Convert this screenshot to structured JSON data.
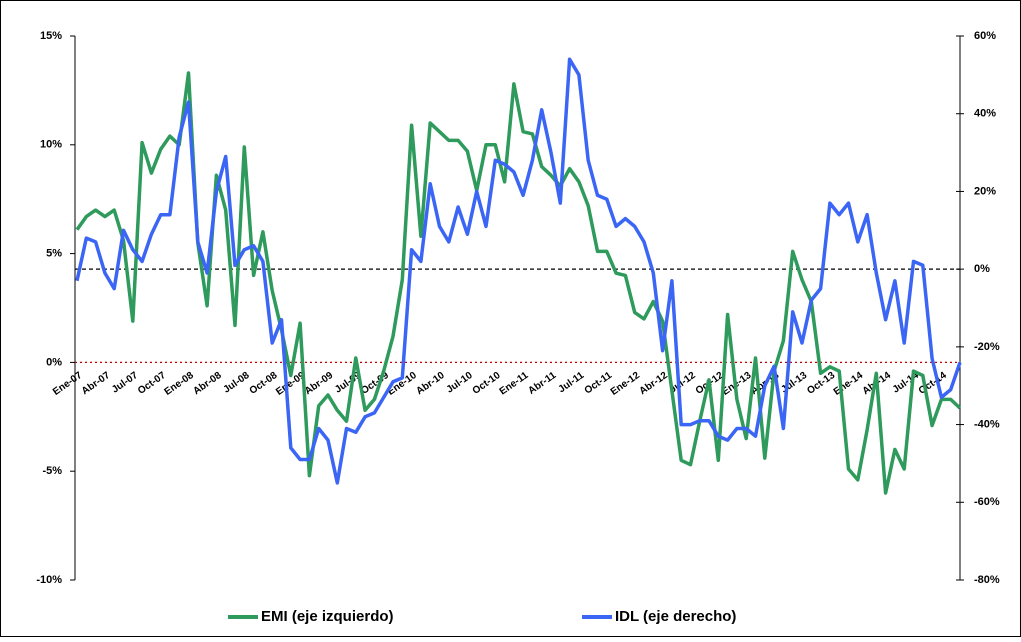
{
  "chart_data": {
    "type": "line",
    "categories": [
      "Ene-07",
      null,
      null,
      "Abr-07",
      null,
      null,
      "Jul-07",
      null,
      null,
      "Oct-07",
      null,
      null,
      "Ene-08",
      null,
      null,
      "Abr-08",
      null,
      null,
      "Jul-08",
      null,
      null,
      "Oct-08",
      null,
      null,
      "Ene-09",
      null,
      null,
      "Abr-09",
      null,
      null,
      "Jul-09",
      null,
      null,
      "Oct-09",
      null,
      null,
      "Ene-10",
      null,
      null,
      "Abr-10",
      null,
      null,
      "Jul-10",
      null,
      null,
      "Oct-10",
      null,
      null,
      "Ene-11",
      null,
      null,
      "Abr-11",
      null,
      null,
      "Jul-11",
      null,
      null,
      "Oct-11",
      null,
      null,
      "Ene-12",
      null,
      null,
      "Abr-12",
      null,
      null,
      "Jul-12",
      null,
      null,
      "Oct-12",
      null,
      null,
      "Ene-13",
      null,
      null,
      "Abr-13",
      null,
      null,
      "Jul-13",
      null,
      null,
      "Oct-13",
      null,
      null,
      "Ene-14",
      null,
      null,
      "Abr-14",
      null,
      null,
      "Jul-14",
      null,
      null,
      "Oct-14",
      null,
      null
    ],
    "series": [
      {
        "name": "EMI (eje izquierdo)",
        "color": "#2e9a5c",
        "axis": "y",
        "values": [
          6.1,
          6.7,
          7.0,
          6.7,
          7.0,
          5.6,
          1.9,
          10.1,
          8.7,
          9.8,
          10.4,
          10.0,
          13.3,
          5.5,
          2.6,
          8.6,
          7.0,
          1.7,
          9.9,
          4.0,
          6.0,
          3.3,
          1.5,
          -0.6,
          1.8,
          -5.2,
          -2.0,
          -1.5,
          -2.2,
          -2.7,
          0.2,
          -2.2,
          -1.7,
          -0.4,
          1.2,
          3.8,
          10.9,
          5.8,
          11.0,
          10.6,
          10.2,
          10.2,
          9.7,
          7.9,
          10.0,
          10.0,
          8.3,
          12.8,
          10.6,
          10.5,
          9.0,
          8.6,
          8.1,
          8.9,
          8.3,
          7.2,
          5.1,
          5.1,
          4.1,
          4.0,
          2.3,
          2.0,
          2.8,
          1.9,
          -1.3,
          -4.5,
          -4.7,
          -2.7,
          -0.8,
          -4.5,
          2.2,
          -1.7,
          -3.5,
          0.2,
          -4.4,
          -0.4,
          1.0,
          5.1,
          3.8,
          2.8,
          -0.5,
          -0.2,
          -0.4,
          -4.9,
          -5.4,
          -3.1,
          -0.5,
          -6.0,
          -4.0,
          -4.9,
          -0.4,
          -0.6,
          -2.9,
          -1.7,
          -1.7,
          -2.1
        ]
      },
      {
        "name": "IDL (eje derecho)",
        "color": "#3b66f5",
        "axis": "y2",
        "values": [
          -3,
          8,
          7,
          -1,
          -5,
          10,
          5,
          2,
          9,
          14,
          14,
          34,
          43,
          7,
          -1,
          20,
          29,
          1,
          5,
          6,
          2,
          -19,
          -13,
          -46,
          -49,
          -49,
          -41,
          -44,
          -55,
          -41,
          -42,
          -38,
          -37,
          -33,
          -29,
          -28,
          5,
          2,
          22,
          11,
          7,
          16,
          9,
          20,
          11,
          28,
          27,
          25,
          19,
          28,
          41,
          30,
          17,
          54,
          50,
          28,
          19,
          18,
          11,
          13,
          11,
          7,
          -1,
          -21,
          -3,
          -40,
          -40,
          -39,
          -39,
          -43,
          -44,
          -41,
          -41,
          -43,
          -30,
          -25,
          -41,
          -11,
          -19,
          -8,
          -5,
          17,
          14,
          17,
          7,
          14,
          -1,
          -13,
          -3,
          -19,
          2,
          1,
          -23,
          -33,
          -31,
          -24
        ]
      }
    ],
    "ylim": [
      -10,
      15
    ],
    "yticks": [
      {
        "value": -10,
        "label": "-10%"
      },
      {
        "value": -5,
        "label": "-5%"
      },
      {
        "value": 0,
        "label": "0%"
      },
      {
        "value": 5,
        "label": "5%"
      },
      {
        "value": 10,
        "label": "10%"
      },
      {
        "value": 15,
        "label": "15%"
      }
    ],
    "y2lim": [
      -80,
      60
    ],
    "y2ticks": [
      {
        "value": -80,
        "label": "-80%"
      },
      {
        "value": -60,
        "label": "-60%"
      },
      {
        "value": -40,
        "label": "-40%"
      },
      {
        "value": -20,
        "label": "-20%"
      },
      {
        "value": 0,
        "label": "0%"
      },
      {
        "value": 20,
        "label": "20%"
      },
      {
        "value": 40,
        "label": "40%"
      },
      {
        "value": 60,
        "label": "60%"
      }
    ],
    "hlines": [
      {
        "axis": "y",
        "value": 0,
        "color": "#c00000",
        "dash": "2 3"
      },
      {
        "axis": "y2",
        "value": 0,
        "color": "#000000",
        "dash": "4 3"
      }
    ],
    "legend": "bottom"
  }
}
